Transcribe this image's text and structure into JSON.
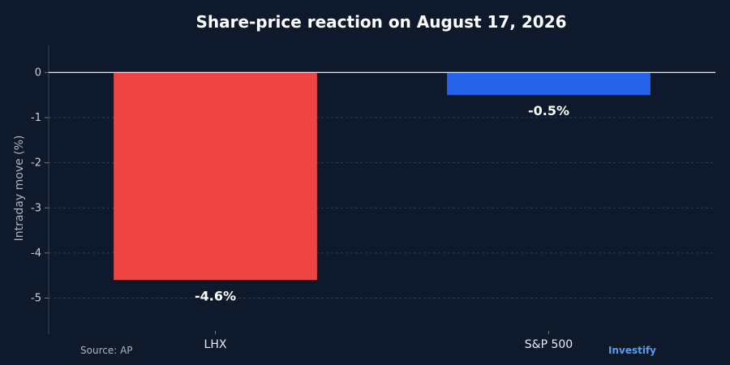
{
  "chart_data": {
    "type": "bar",
    "title": "Share-price reaction on August 17, 2026",
    "ylabel": "Intraday move (%)",
    "xlabel": "",
    "categories": [
      "LHX",
      "S&P 500"
    ],
    "values": [
      -4.6,
      -0.5
    ],
    "data_labels": [
      "-4.6%",
      "-0.5%"
    ],
    "bar_colors": [
      "#ef4444",
      "#2563eb"
    ],
    "ylim": [
      -5.8,
      0.6
    ],
    "yticks": [
      0,
      -1,
      -2,
      -3,
      -4,
      -5
    ],
    "ytick_labels": [
      "0",
      "-1",
      "-2",
      "-3",
      "-4",
      "-5"
    ],
    "grid": true
  },
  "footer": {
    "source": "Source: AP",
    "brand": "Investify"
  },
  "colors": {
    "background": "#0e1a2b",
    "grid": "#2f3d52",
    "brand": "#5b9bf0"
  }
}
